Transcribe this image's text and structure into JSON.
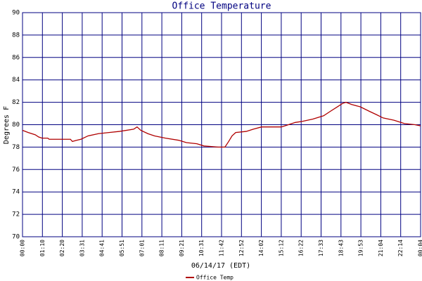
{
  "chart_data": {
    "type": "line",
    "title": "Office Temperature",
    "xlabel": "06/14/17 (EDT)",
    "ylabel": "Degrees F",
    "xlim": [
      0,
      1404
    ],
    "ylim": [
      70,
      90
    ],
    "yticks": [
      70,
      72,
      74,
      76,
      78,
      80,
      82,
      84,
      86,
      88,
      90
    ],
    "xticks": [
      {
        "value": 0,
        "label": "00:00"
      },
      {
        "value": 70.2,
        "label": "01:10"
      },
      {
        "value": 140.4,
        "label": "02:20"
      },
      {
        "value": 210.6,
        "label": "03:31"
      },
      {
        "value": 280.8,
        "label": "04:41"
      },
      {
        "value": 351,
        "label": "05:51"
      },
      {
        "value": 421.2,
        "label": "07:01"
      },
      {
        "value": 491.4,
        "label": "08:11"
      },
      {
        "value": 561.6,
        "label": "09:21"
      },
      {
        "value": 631.8,
        "label": "10:31"
      },
      {
        "value": 702,
        "label": "11:42"
      },
      {
        "value": 772.2,
        "label": "12:52"
      },
      {
        "value": 842.4,
        "label": "14:02"
      },
      {
        "value": 912.6,
        "label": "15:12"
      },
      {
        "value": 982.8,
        "label": "16:22"
      },
      {
        "value": 1053,
        "label": "17:33"
      },
      {
        "value": 1123.2,
        "label": "18:43"
      },
      {
        "value": 1193.4,
        "label": "19:53"
      },
      {
        "value": 1263.6,
        "label": "21:04"
      },
      {
        "value": 1333.8,
        "label": "22:14"
      },
      {
        "value": 1404,
        "label": "00:04"
      }
    ],
    "grid": true,
    "legend": "bottom",
    "series": [
      {
        "name": "Office Temp",
        "color": "#b00000",
        "x": [
          0,
          20,
          45,
          57,
          69,
          89,
          94,
          169,
          176,
          189,
          206,
          231,
          268,
          305,
          342,
          392,
          404,
          417,
          442,
          466,
          504,
          553,
          578,
          615,
          640,
          690,
          714,
          727,
          739,
          752,
          789,
          814,
          843,
          913,
          938,
          962,
          987,
          1024,
          1062,
          1086,
          1111,
          1129,
          1141,
          1161,
          1191,
          1223,
          1248,
          1272,
          1310,
          1347,
          1384,
          1404
        ],
        "values": [
          79.5,
          79.3,
          79.1,
          78.9,
          78.8,
          78.8,
          78.7,
          78.7,
          78.5,
          78.6,
          78.7,
          79.0,
          79.2,
          79.3,
          79.4,
          79.6,
          79.8,
          79.5,
          79.2,
          79.0,
          78.8,
          78.6,
          78.4,
          78.3,
          78.1,
          78.0,
          78.0,
          78.5,
          79.0,
          79.3,
          79.4,
          79.6,
          79.8,
          79.8,
          80.0,
          80.2,
          80.3,
          80.5,
          80.8,
          81.2,
          81.6,
          81.9,
          82.0,
          81.8,
          81.6,
          81.2,
          80.9,
          80.6,
          80.4,
          80.1,
          80.0,
          79.9
        ]
      }
    ]
  }
}
